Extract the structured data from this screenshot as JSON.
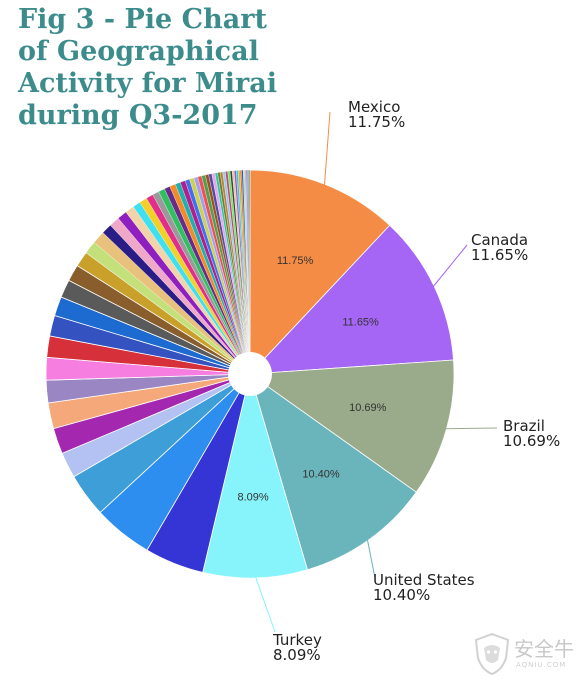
{
  "title_lines": [
    "Fig 3 - Pie Chart",
    "of Geographical",
    "Activity for Mirai",
    "during Q3-2017"
  ],
  "watermark": {
    "cn": "安全牛",
    "en": "AQNIU.COM"
  },
  "chart_data": {
    "type": "pie",
    "title": "Fig 3 - Pie Chart of Geographical Activity for Mirai during Q3-2017",
    "donut_hole": true,
    "start_angle_deg": 0,
    "direction": "clockwise",
    "slices": [
      {
        "label": "Mexico",
        "value": 11.75,
        "color": "#f58c45",
        "inner_label": "11.75%",
        "outer_label": "11.75%"
      },
      {
        "label": "Canada",
        "value": 11.65,
        "color": "#a565f5",
        "inner_label": "11.65%",
        "outer_label": "11.65%"
      },
      {
        "label": "Brazil",
        "value": 10.69,
        "color": "#9aab8b",
        "inner_label": "10.69%",
        "outer_label": "10.69%"
      },
      {
        "label": "United States",
        "value": 10.4,
        "color": "#6ab4bc",
        "inner_label": "10.40%",
        "outer_label": "10.40%"
      },
      {
        "label": "Turkey",
        "value": 8.09,
        "color": "#86f4fa",
        "inner_label": "8.09%",
        "outer_label": "8.09%"
      },
      {
        "label": "",
        "value": 4.6,
        "color": "#3535d6"
      },
      {
        "label": "",
        "value": 4.6,
        "color": "#2d8ef0"
      },
      {
        "label": "",
        "value": 3.4,
        "color": "#3d9ed8"
      },
      {
        "label": "",
        "value": 2.0,
        "color": "#b3c2f2"
      },
      {
        "label": "",
        "value": 2.0,
        "color": "#a427b0"
      },
      {
        "label": "",
        "value": 2.0,
        "color": "#f5a97a"
      },
      {
        "label": "",
        "value": 1.75,
        "color": "#9a86c2"
      },
      {
        "label": "",
        "value": 1.75,
        "color": "#f57ee0"
      },
      {
        "label": "",
        "value": 1.65,
        "color": "#d6303a"
      },
      {
        "label": "",
        "value": 1.6,
        "color": "#3553c0"
      },
      {
        "label": "",
        "value": 1.5,
        "color": "#1d6ad0"
      },
      {
        "label": "",
        "value": 1.4,
        "color": "#5a5a5a"
      },
      {
        "label": "",
        "value": 1.3,
        "color": "#8a5e2c"
      },
      {
        "label": "",
        "value": 1.2,
        "color": "#c9a02a"
      },
      {
        "label": "",
        "value": 1.0,
        "color": "#c3e07a"
      },
      {
        "label": "",
        "value": 1.0,
        "color": "#e8c27c"
      },
      {
        "label": "",
        "value": 0.8,
        "color": "#2a1d88"
      },
      {
        "label": "",
        "value": 0.8,
        "color": "#f0a8c8"
      },
      {
        "label": "",
        "value": 0.75,
        "color": "#8f1fbe"
      },
      {
        "label": "",
        "value": 0.7,
        "color": "#f2d4a8"
      },
      {
        "label": "",
        "value": 0.6,
        "color": "#3fe0f2"
      },
      {
        "label": "",
        "value": 0.6,
        "color": "#f2d028"
      },
      {
        "label": "",
        "value": 0.55,
        "color": "#e02e8a"
      },
      {
        "label": "",
        "value": 0.5,
        "color": "#9a9a9a"
      },
      {
        "label": "",
        "value": 0.5,
        "color": "#30c060"
      },
      {
        "label": "",
        "value": 0.45,
        "color": "#6a2a8a"
      },
      {
        "label": "",
        "value": 0.45,
        "color": "#f28a28"
      },
      {
        "label": "",
        "value": 0.4,
        "color": "#20b0b0"
      },
      {
        "label": "",
        "value": 0.4,
        "color": "#b0208a"
      },
      {
        "label": "",
        "value": 0.35,
        "color": "#4070f0"
      },
      {
        "label": "",
        "value": 0.35,
        "color": "#d0d050"
      },
      {
        "label": "",
        "value": 0.3,
        "color": "#a0a0f0"
      },
      {
        "label": "",
        "value": 0.3,
        "color": "#f05050"
      },
      {
        "label": "",
        "value": 0.3,
        "color": "#50a050"
      },
      {
        "label": "",
        "value": 0.25,
        "color": "#a05020"
      },
      {
        "label": "",
        "value": 0.25,
        "color": "#5050a0"
      },
      {
        "label": "",
        "value": 0.25,
        "color": "#f0a0f0"
      },
      {
        "label": "",
        "value": 0.2,
        "color": "#20d0a0"
      },
      {
        "label": "",
        "value": 0.2,
        "color": "#7a7a2a"
      },
      {
        "label": "",
        "value": 0.2,
        "color": "#c08040"
      },
      {
        "label": "",
        "value": 0.2,
        "color": "#8ad0f0"
      },
      {
        "label": "",
        "value": 0.18,
        "color": "#d04070"
      },
      {
        "label": "",
        "value": 0.18,
        "color": "#60f060"
      },
      {
        "label": "",
        "value": 0.16,
        "color": "#404040"
      },
      {
        "label": "",
        "value": 0.16,
        "color": "#f0c0a0"
      },
      {
        "label": "",
        "value": 0.15,
        "color": "#9060c0"
      },
      {
        "label": "",
        "value": 0.15,
        "color": "#40c0f0"
      },
      {
        "label": "",
        "value": 0.15,
        "color": "#c0c040"
      },
      {
        "label": "",
        "value": 0.12,
        "color": "#f06020"
      },
      {
        "label": "",
        "value": 0.12,
        "color": "#2060a0"
      },
      {
        "label": "",
        "value": 0.12,
        "color": "#a0e0c0"
      },
      {
        "label": "",
        "value": 0.1,
        "color": "#e0a0c0"
      },
      {
        "label": "",
        "value": 0.1,
        "color": "#6080f0"
      },
      {
        "label": "",
        "value": 0.1,
        "color": "#b07050"
      },
      {
        "label": "",
        "value": 0.1,
        "color": "#50b0a0"
      }
    ]
  }
}
